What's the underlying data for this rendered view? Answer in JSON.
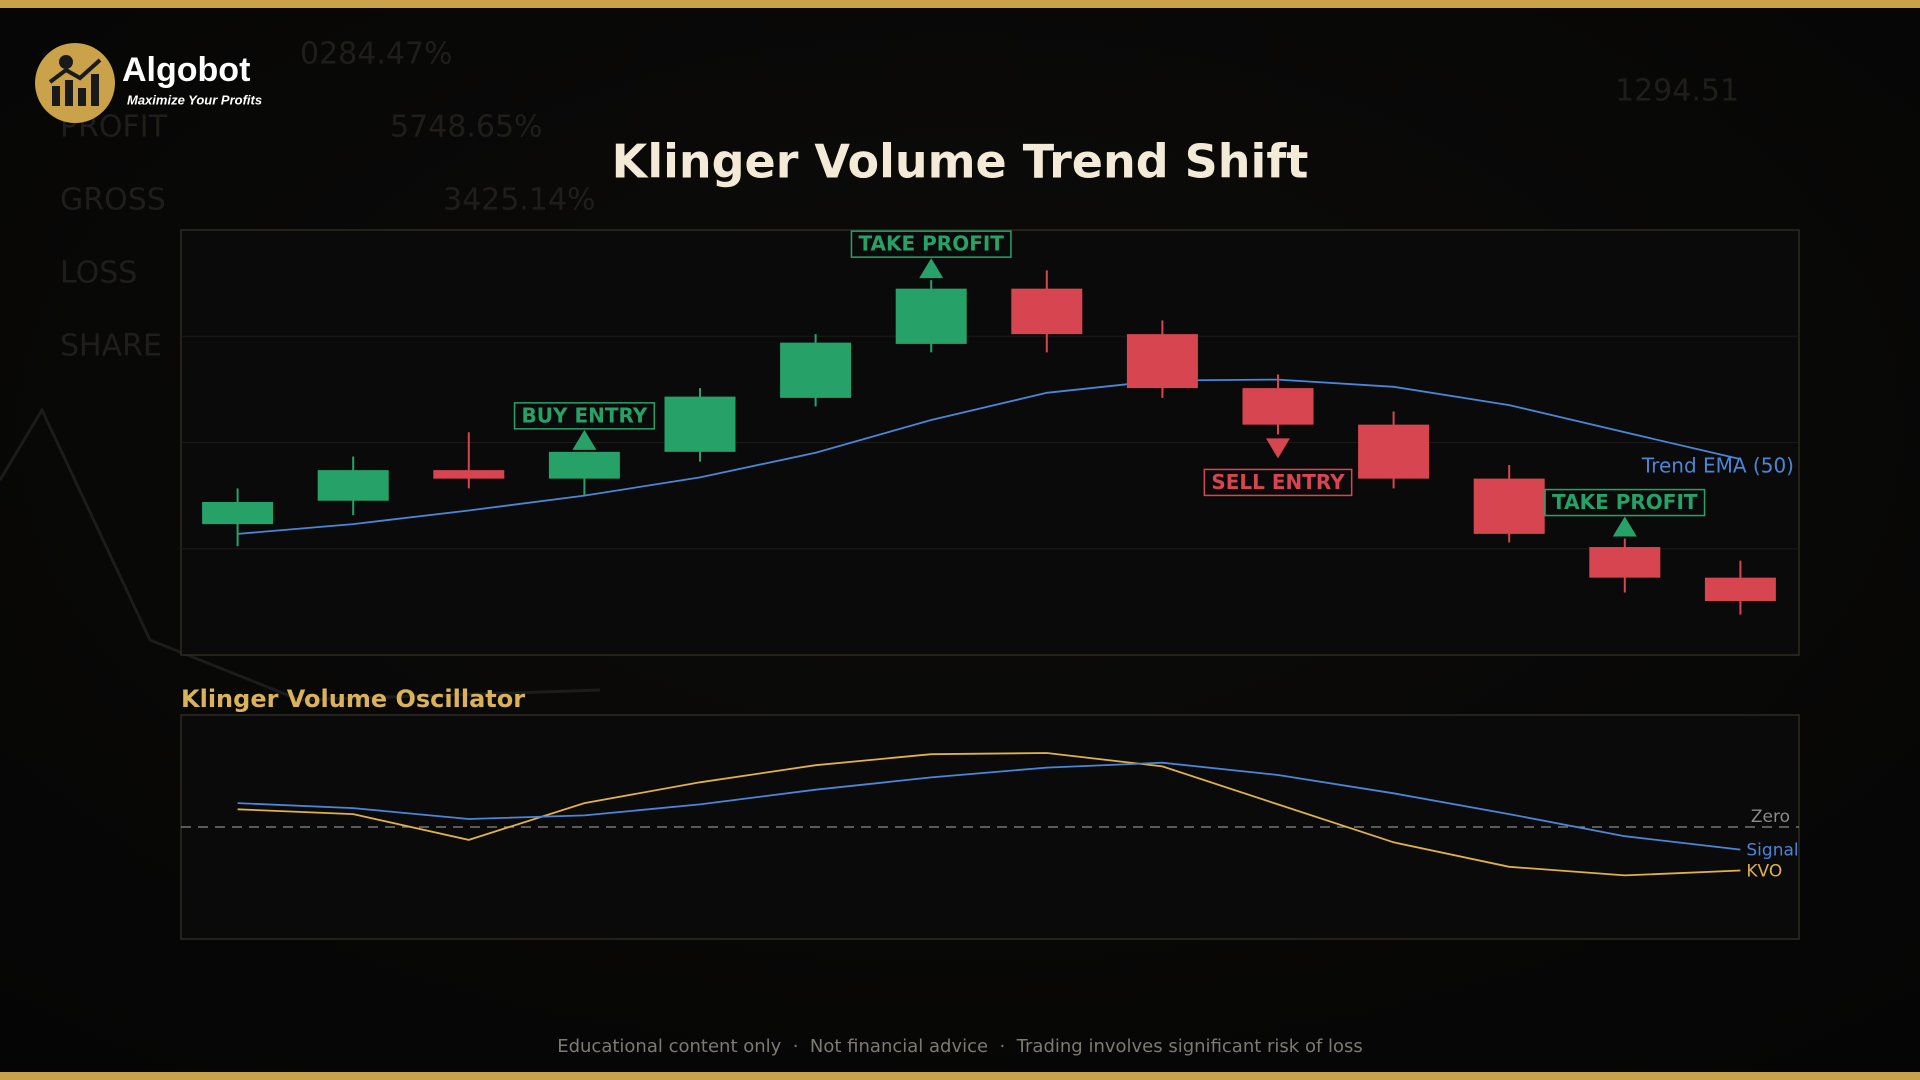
{
  "brand": {
    "name": "Algobot",
    "tagline": "Maximize Your Profits"
  },
  "background_stats": {
    "labels": [
      "PROFIT",
      "GROSS",
      "LOSS",
      "SHARE"
    ],
    "values": [
      "0284.47%",
      "5748.65%",
      "3425.14%",
      "1294.51"
    ]
  },
  "footer": "Educational content only  ·  Not financial advice  ·  Trading involves significant risk of loss",
  "chart_data": [
    {
      "type": "candlestick",
      "title": "Klinger Volume Trend Shift",
      "open": [
        30.8,
        36.3,
        43.5,
        41.5,
        47.8,
        60.5,
        73.2,
        86.2,
        75.5,
        62.8,
        54.2,
        41.5,
        25.4,
        18.2
      ],
      "high": [
        39.2,
        46.7,
        52.4,
        47.8,
        62.8,
        75.5,
        88.2,
        90.5,
        78.7,
        66.0,
        57.3,
        44.7,
        27.4,
        22.2
      ],
      "low": [
        25.6,
        32.9,
        39.2,
        37.5,
        45.5,
        58.5,
        71.2,
        71.2,
        60.5,
        51.9,
        39.2,
        26.5,
        14.7,
        9.5
      ],
      "close": [
        36.0,
        43.5,
        41.5,
        47.8,
        60.8,
        73.5,
        86.2,
        75.5,
        62.8,
        54.2,
        41.5,
        28.5,
        18.2,
        12.7
      ],
      "up_color": "#26a269",
      "down_color": "#d64550",
      "line_series": [
        {
          "name": "Trend EMA (50)",
          "color": "#4a86d8",
          "values": [
            28.5,
            30.8,
            34.0,
            37.5,
            41.8,
            47.6,
            55.3,
            61.7,
            64.6,
            64.8,
            63.1,
            58.8,
            52.4,
            46.1
          ]
        }
      ],
      "annotations": [
        {
          "text": "BUY ENTRY",
          "color": "#26a269"
        },
        {
          "text": "TAKE PROFIT",
          "color": "#26a269"
        },
        {
          "text": "SELL ENTRY",
          "color": "#d64550"
        },
        {
          "text": "TAKE PROFIT",
          "color": "#26a269"
        }
      ],
      "ylim": [
        0,
        100
      ],
      "yticks": [
        25,
        50,
        75
      ],
      "grid": true
    },
    {
      "type": "line",
      "title": "Klinger Volume Oscillator",
      "series": [
        {
          "name": "KVO",
          "color": "#e0b04a",
          "values": [
            15.8,
            11.5,
            -11.5,
            21.3,
            39.9,
            55.2,
            65.0,
            66.1,
            54.1,
            20.2,
            -13.7,
            -35.5,
            -43.2,
            -38.8
          ]
        },
        {
          "name": "Signal",
          "color": "#4a86d8",
          "values": [
            21.3,
            16.9,
            7.1,
            10.4,
            20.2,
            33.3,
            44.3,
            53.0,
            57.4,
            46.4,
            30.1,
            11.5,
            -8.2,
            -20.2
          ]
        }
      ],
      "ylim": [
        -100,
        100
      ],
      "yticks": [
        {
          "value": 0,
          "label": "Zero"
        }
      ]
    }
  ]
}
